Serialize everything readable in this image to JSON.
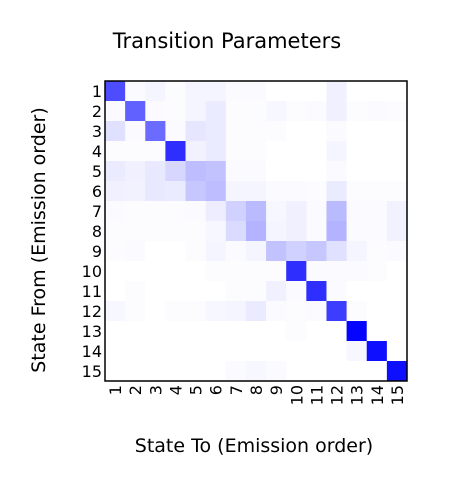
{
  "chart_data": {
    "type": "heatmap",
    "title": "Transition Parameters",
    "xlabel": "State To (Emission order)",
    "ylabel": "State From (Emission order)",
    "x_ticks": [
      "1",
      "2",
      "3",
      "4",
      "5",
      "6",
      "7",
      "8",
      "9",
      "10",
      "11",
      "12",
      "13",
      "14",
      "15"
    ],
    "y_ticks": [
      "1",
      "2",
      "3",
      "4",
      "5",
      "6",
      "7",
      "8",
      "9",
      "10",
      "11",
      "12",
      "13",
      "14",
      "15"
    ],
    "color_low": "#ffffff",
    "color_high": "#0000ff",
    "value_range": [
      0,
      1
    ],
    "values": [
      [
        0.7,
        0.02,
        0.04,
        0.01,
        0.04,
        0.04,
        0.02,
        0.02,
        0.0,
        0.0,
        0.0,
        0.06,
        0.0,
        0.0,
        0.0
      ],
      [
        0.02,
        0.62,
        0.02,
        0.01,
        0.04,
        0.08,
        0.01,
        0.01,
        0.03,
        0.01,
        0.02,
        0.06,
        0.01,
        0.02,
        0.01
      ],
      [
        0.12,
        0.02,
        0.58,
        0.02,
        0.1,
        0.08,
        0.01,
        0.01,
        0.01,
        0.0,
        0.0,
        0.02,
        0.0,
        0.0,
        0.0
      ],
      [
        0.01,
        0.01,
        0.01,
        0.82,
        0.05,
        0.08,
        0.01,
        0.01,
        0.0,
        0.0,
        0.0,
        0.04,
        0.0,
        0.0,
        0.0
      ],
      [
        0.08,
        0.06,
        0.09,
        0.16,
        0.26,
        0.24,
        0.02,
        0.02,
        0.0,
        0.0,
        0.0,
        0.02,
        0.0,
        0.0,
        0.0
      ],
      [
        0.06,
        0.05,
        0.09,
        0.08,
        0.22,
        0.26,
        0.04,
        0.04,
        0.02,
        0.02,
        0.01,
        0.08,
        0.01,
        0.01,
        0.01
      ],
      [
        0.02,
        0.01,
        0.01,
        0.01,
        0.02,
        0.07,
        0.18,
        0.27,
        0.03,
        0.06,
        0.02,
        0.27,
        0.02,
        0.02,
        0.05
      ],
      [
        0.01,
        0.01,
        0.01,
        0.01,
        0.01,
        0.03,
        0.14,
        0.3,
        0.04,
        0.06,
        0.02,
        0.3,
        0.02,
        0.02,
        0.05
      ],
      [
        0.01,
        0.02,
        0.0,
        0.0,
        0.01,
        0.04,
        0.02,
        0.04,
        0.24,
        0.18,
        0.22,
        0.12,
        0.04,
        0.01,
        0.02
      ],
      [
        0.0,
        0.0,
        0.0,
        0.0,
        0.0,
        0.01,
        0.01,
        0.01,
        0.01,
        0.82,
        0.02,
        0.02,
        0.02,
        0.01,
        0.0
      ],
      [
        0.0,
        0.01,
        0.0,
        0.0,
        0.0,
        0.0,
        0.01,
        0.01,
        0.06,
        0.02,
        0.82,
        0.02,
        0.0,
        0.0,
        0.0
      ],
      [
        0.03,
        0.01,
        0.0,
        0.01,
        0.01,
        0.03,
        0.04,
        0.08,
        0.02,
        0.01,
        0.02,
        0.76,
        0.01,
        0.0,
        0.0
      ],
      [
        0.0,
        0.0,
        0.0,
        0.0,
        0.0,
        0.0,
        0.0,
        0.0,
        0.0,
        0.01,
        0.0,
        0.0,
        0.98,
        0.0,
        0.0
      ],
      [
        0.0,
        0.0,
        0.0,
        0.0,
        0.0,
        0.0,
        0.0,
        0.0,
        0.0,
        0.0,
        0.0,
        0.0,
        0.03,
        0.94,
        0.0
      ],
      [
        0.0,
        0.0,
        0.0,
        0.0,
        0.0,
        0.0,
        0.02,
        0.03,
        0.02,
        0.0,
        0.0,
        0.0,
        0.0,
        0.0,
        0.94
      ]
    ]
  }
}
